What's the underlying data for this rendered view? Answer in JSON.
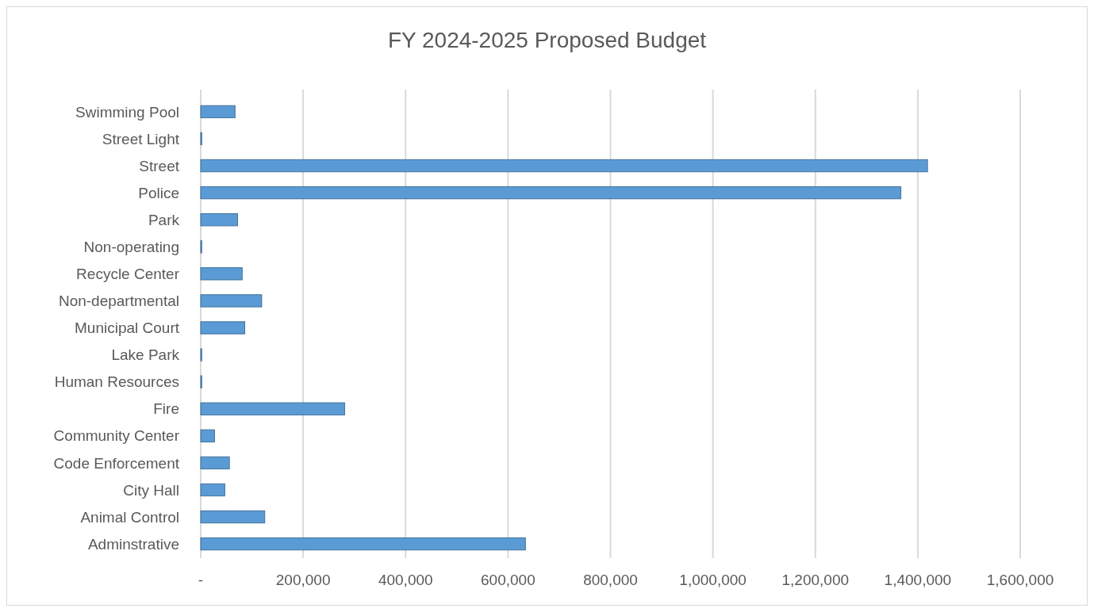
{
  "chart_data": {
    "type": "bar",
    "orientation": "horizontal",
    "title": "FY 2024-2025 Proposed Budget",
    "categories": [
      "Swimming Pool",
      "Street Light",
      "Street",
      "Police",
      "Park",
      "Non-operating",
      "Recycle Center",
      "Non-departmental",
      "Municipal Court",
      "Lake Park",
      "Human Resources",
      "Fire",
      "Community Center",
      "Code Enforcement",
      "City Hall",
      "Animal Control",
      "Adminstrative"
    ],
    "values": [
      67000,
      2000,
      1419000,
      1367000,
      72000,
      2000,
      81000,
      119000,
      86000,
      2000,
      2000,
      281000,
      27000,
      56000,
      47000,
      125000,
      634000
    ],
    "color": "#5b9bd5",
    "xlim": [
      0,
      1600000
    ],
    "xticks": [
      {
        "value": 0,
        "label": "-"
      },
      {
        "value": 200000,
        "label": "200,000"
      },
      {
        "value": 400000,
        "label": "400,000"
      },
      {
        "value": 600000,
        "label": "600,000"
      },
      {
        "value": 800000,
        "label": "800,000"
      },
      {
        "value": 1000000,
        "label": "1,000,000"
      },
      {
        "value": 1200000,
        "label": "1,200,000"
      },
      {
        "value": 1400000,
        "label": "1,400,000"
      },
      {
        "value": 1600000,
        "label": "1,600,000"
      }
    ],
    "grid": "x"
  }
}
